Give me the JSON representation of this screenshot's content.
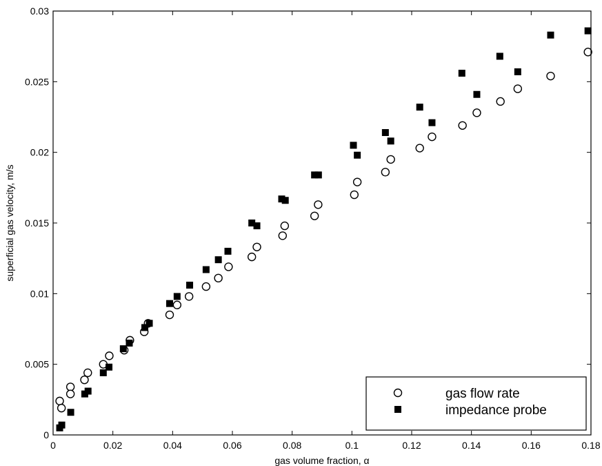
{
  "chart_data": {
    "type": "scatter",
    "xlabel": "gas volume fraction, α",
    "ylabel": "superficial gas velocity, m/s",
    "xlim": [
      0,
      0.18
    ],
    "ylim": [
      0,
      0.03
    ],
    "xticks": [
      0,
      0.02,
      0.04,
      0.06,
      0.08,
      0.1,
      0.12,
      0.14,
      0.16,
      0.18
    ],
    "xtick_labels": [
      "0",
      "0.02",
      "0.04",
      "0.06",
      "0.08",
      "0.1",
      "0.12",
      "0.14",
      "0.16",
      "0.18"
    ],
    "yticks": [
      0,
      0.005,
      0.01,
      0.015,
      0.02,
      0.025,
      0.03
    ],
    "ytick_labels": [
      "0",
      "0.005",
      "0.01",
      "0.015",
      "0.02",
      "0.025",
      "0.03"
    ],
    "grid": false,
    "legend_position": "bottom-right",
    "series": [
      {
        "name": "gas flow rate",
        "marker": "open-circle",
        "color": "#000000",
        "points": [
          [
            0.0022,
            0.0024
          ],
          [
            0.0028,
            0.0019
          ],
          [
            0.0058,
            0.0034
          ],
          [
            0.0058,
            0.0029
          ],
          [
            0.0105,
            0.0039
          ],
          [
            0.0116,
            0.0044
          ],
          [
            0.0168,
            0.005
          ],
          [
            0.0188,
            0.0056
          ],
          [
            0.0238,
            0.006
          ],
          [
            0.0257,
            0.0067
          ],
          [
            0.0305,
            0.0073
          ],
          [
            0.0318,
            0.0079
          ],
          [
            0.039,
            0.0085
          ],
          [
            0.0415,
            0.0092
          ],
          [
            0.0455,
            0.0098
          ],
          [
            0.0512,
            0.0105
          ],
          [
            0.0553,
            0.0111
          ],
          [
            0.0587,
            0.0119
          ],
          [
            0.0665,
            0.0126
          ],
          [
            0.0682,
            0.0133
          ],
          [
            0.0768,
            0.0141
          ],
          [
            0.0775,
            0.0148
          ],
          [
            0.0875,
            0.0155
          ],
          [
            0.0887,
            0.0163
          ],
          [
            0.1008,
            0.017
          ],
          [
            0.1018,
            0.0179
          ],
          [
            0.1112,
            0.0186
          ],
          [
            0.113,
            0.0195
          ],
          [
            0.1227,
            0.0203
          ],
          [
            0.1268,
            0.0211
          ],
          [
            0.137,
            0.0219
          ],
          [
            0.1418,
            0.0228
          ],
          [
            0.1497,
            0.0236
          ],
          [
            0.1555,
            0.0245
          ],
          [
            0.1665,
            0.0254
          ],
          [
            0.179,
            0.0271
          ]
        ]
      },
      {
        "name": "impedance probe",
        "marker": "filled-square",
        "color": "#000000",
        "points": [
          [
            0.0022,
            0.0005
          ],
          [
            0.0029,
            0.0007
          ],
          [
            0.0059,
            0.0016
          ],
          [
            0.0106,
            0.0029
          ],
          [
            0.0117,
            0.0031
          ],
          [
            0.0168,
            0.0044
          ],
          [
            0.0187,
            0.0048
          ],
          [
            0.0235,
            0.0061
          ],
          [
            0.0255,
            0.0065
          ],
          [
            0.0307,
            0.0076
          ],
          [
            0.0322,
            0.0079
          ],
          [
            0.039,
            0.0093
          ],
          [
            0.0415,
            0.0098
          ],
          [
            0.0457,
            0.0106
          ],
          [
            0.0512,
            0.0117
          ],
          [
            0.0553,
            0.0124
          ],
          [
            0.0585,
            0.013
          ],
          [
            0.0665,
            0.015
          ],
          [
            0.0682,
            0.0148
          ],
          [
            0.0765,
            0.0167
          ],
          [
            0.0777,
            0.0166
          ],
          [
            0.0875,
            0.0184
          ],
          [
            0.0888,
            0.0184
          ],
          [
            0.1005,
            0.0205
          ],
          [
            0.1018,
            0.0198
          ],
          [
            0.1112,
            0.0214
          ],
          [
            0.113,
            0.0208
          ],
          [
            0.1227,
            0.0232
          ],
          [
            0.1268,
            0.0221
          ],
          [
            0.1368,
            0.0256
          ],
          [
            0.1418,
            0.0241
          ],
          [
            0.1495,
            0.0268
          ],
          [
            0.1555,
            0.0257
          ],
          [
            0.1665,
            0.0283
          ],
          [
            0.179,
            0.0286
          ]
        ]
      }
    ]
  }
}
